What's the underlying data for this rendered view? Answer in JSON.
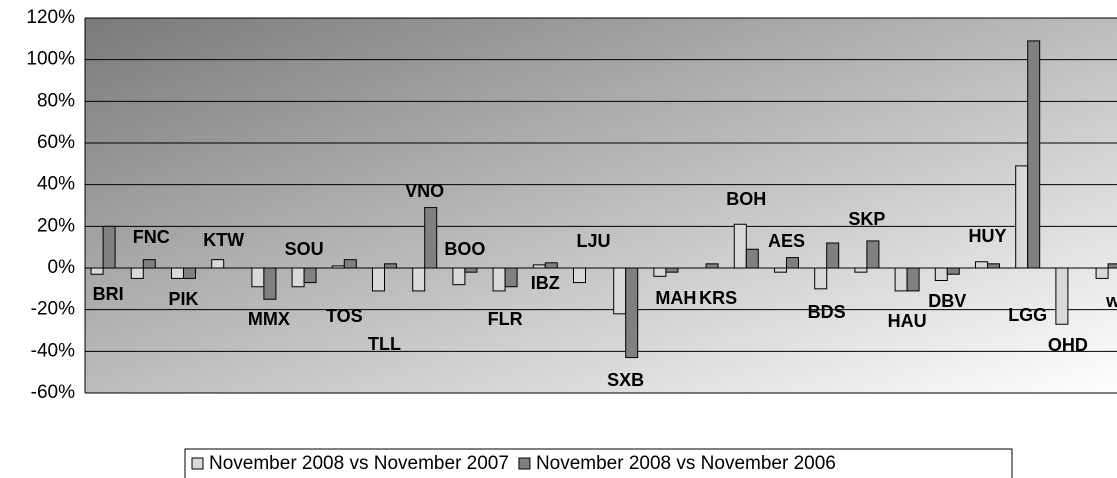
{
  "chart_data": {
    "type": "bar",
    "categories": [
      "BRI",
      "FNC",
      "PIK",
      "KTW",
      "MMX",
      "SOU",
      "TOS",
      "TLL",
      "VNO",
      "BOO",
      "FLR",
      "IBZ",
      "LJU",
      "SXB",
      "MAH",
      "KRS",
      "BOH",
      "AES",
      "BDS",
      "SKP",
      "HAU",
      "DBV",
      "HUY",
      "LGG",
      "OHD",
      "wa"
    ],
    "series": [
      {
        "name": "November 2008 vs November 2007",
        "color": "#d9d9d9",
        "values": [
          -3,
          -5,
          -5,
          4,
          -9,
          -9,
          1,
          -11,
          -11,
          -8,
          -11,
          1.5,
          -7,
          -22,
          -4,
          null,
          21,
          -2,
          -10,
          -2,
          -11,
          -6,
          3,
          49,
          -27,
          -5
        ]
      },
      {
        "name": "November 2008 vs November 2006",
        "color": "#808080",
        "values": [
          20,
          4,
          -5,
          null,
          -15,
          -7,
          4,
          2,
          29,
          -2,
          -9,
          2.5,
          null,
          -43,
          -2,
          2,
          9,
          5,
          12,
          13,
          -11,
          -3,
          2,
          109,
          null,
          2
        ]
      }
    ],
    "ylim": [
      -60,
      120
    ],
    "yticks": [
      {
        "value": -60,
        "label": "-60%"
      },
      {
        "value": -40,
        "label": "-40%"
      },
      {
        "value": -20,
        "label": "-20%"
      },
      {
        "value": 0,
        "label": "0%"
      },
      {
        "value": 20,
        "label": "20%"
      },
      {
        "value": 40,
        "label": "40%"
      },
      {
        "value": 60,
        "label": "60%"
      },
      {
        "value": 80,
        "label": "80%"
      },
      {
        "value": 100,
        "label": "100%"
      },
      {
        "value": 120,
        "label": "120%"
      }
    ],
    "grid": true,
    "legend": "bottom"
  }
}
